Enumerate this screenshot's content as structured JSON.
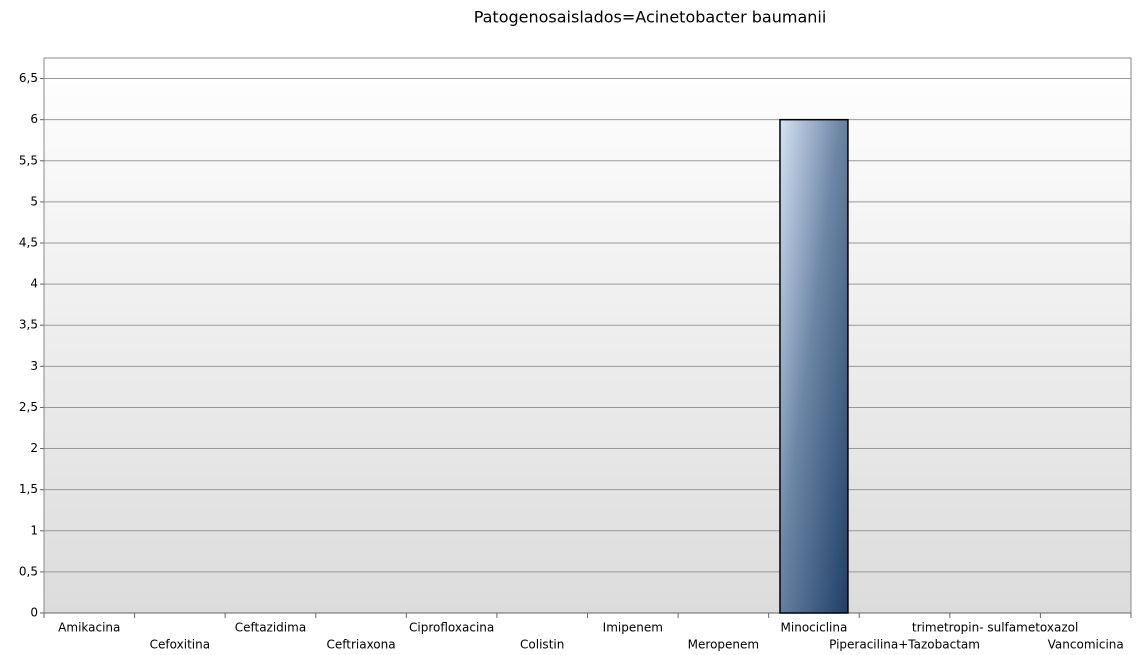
{
  "chart_data": {
    "type": "bar",
    "title": "Patogenosaislados=Acinetobacter baumanii",
    "categories": [
      "Amikacina",
      "Cefoxitina",
      "Ceftazidima",
      "Ceftriaxona",
      "Ciprofloxacina",
      "Colistin",
      "Imipenem",
      "Meropenem",
      "Minociclina",
      "Piperacilina+Tazobactam",
      "trimetropin- sulfametoxazol",
      "Vancomicina"
    ],
    "values": [
      0,
      0,
      0,
      0,
      0,
      0,
      0,
      0,
      6,
      0,
      0,
      0
    ],
    "ylim": [
      0,
      6.75
    ],
    "yticks": [
      0,
      {
        "value": 0.5,
        "label": "0,5"
      },
      1,
      {
        "value": 1.5,
        "label": "1,5"
      },
      2,
      {
        "value": 2.5,
        "label": "2,5"
      },
      3,
      {
        "value": 3.5,
        "label": "3,5"
      },
      4,
      {
        "value": 4.5,
        "label": "4,5"
      },
      5,
      {
        "value": 5.5,
        "label": "5,5"
      },
      6,
      {
        "value": 6.5,
        "label": "6,5"
      }
    ],
    "grid": true
  }
}
